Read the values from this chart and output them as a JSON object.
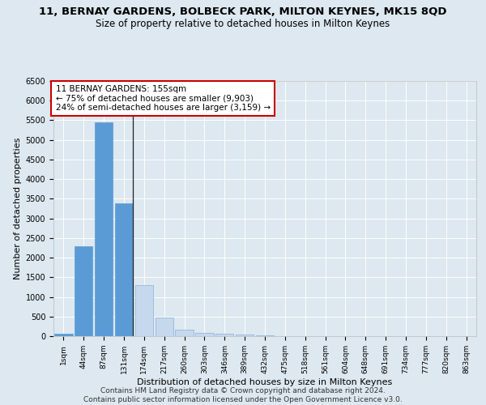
{
  "title_line1": "11, BERNAY GARDENS, BOLBECK PARK, MILTON KEYNES, MK15 8QD",
  "title_line2": "Size of property relative to detached houses in Milton Keynes",
  "xlabel": "Distribution of detached houses by size in Milton Keynes",
  "ylabel": "Number of detached properties",
  "footer_line1": "Contains HM Land Registry data © Crown copyright and database right 2024.",
  "footer_line2": "Contains public sector information licensed under the Open Government Licence v3.0.",
  "annotation_line1": "11 BERNAY GARDENS: 155sqm",
  "annotation_line2": "← 75% of detached houses are smaller (9,903)",
  "annotation_line3": "24% of semi-detached houses are larger (3,159) →",
  "categories": [
    "1sqm",
    "44sqm",
    "87sqm",
    "131sqm",
    "174sqm",
    "217sqm",
    "260sqm",
    "303sqm",
    "346sqm",
    "389sqm",
    "432sqm",
    "475sqm",
    "518sqm",
    "561sqm",
    "604sqm",
    "648sqm",
    "691sqm",
    "734sqm",
    "777sqm",
    "820sqm",
    "863sqm"
  ],
  "values": [
    70,
    2290,
    5440,
    3380,
    1290,
    475,
    160,
    90,
    55,
    35,
    15,
    10,
    5,
    3,
    2,
    1,
    1,
    0,
    0,
    0,
    0
  ],
  "bar_color_default": "#c5d8ee",
  "bar_color_highlight": "#5b9bd5",
  "bar_edge_color": "#5b9bd5",
  "bar_edge_default": "#8ab0d4",
  "highlight_index": 3,
  "vline_index": 3,
  "ylim": [
    0,
    6500
  ],
  "yticks": [
    0,
    500,
    1000,
    1500,
    2000,
    2500,
    3000,
    3500,
    4000,
    4500,
    5000,
    5500,
    6000,
    6500
  ],
  "background_color": "#dde8f0",
  "plot_bg_color": "#dde8f0",
  "grid_color": "#ffffff",
  "annotation_box_color": "#ffffff",
  "annotation_box_edge": "#cc0000",
  "title_fontsize": 9.5,
  "subtitle_fontsize": 8.5,
  "ylabel_fontsize": 8,
  "xlabel_fontsize": 8,
  "tick_fontsize": 7,
  "annotation_fontsize": 7.5,
  "footer_fontsize": 6.5
}
